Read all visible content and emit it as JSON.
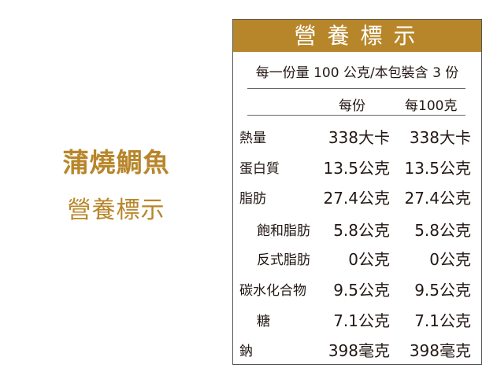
{
  "product": {
    "name": "蒲燒鯛魚",
    "subtitle": "營養標示"
  },
  "label": {
    "header": "營養標示",
    "serving": "每一份量 100 公克/本包裝含 3 份",
    "col_per_serving": "每份",
    "col_per_100g": "每100克",
    "rows": [
      {
        "name": "熱量",
        "per_serving": "338大卡",
        "per_100g": "338大卡",
        "indent": false
      },
      {
        "name": "蛋白質",
        "per_serving": "13.5公克",
        "per_100g": "13.5公克",
        "indent": false
      },
      {
        "name": "脂肪",
        "per_serving": "27.4公克",
        "per_100g": "27.4公克",
        "indent": false
      },
      {
        "name": "飽和脂肪",
        "per_serving": "5.8公克",
        "per_100g": "5.8公克",
        "indent": true
      },
      {
        "name": "反式脂肪",
        "per_serving": "0公克",
        "per_100g": "0公克",
        "indent": true
      },
      {
        "name": "碳水化合物",
        "per_serving": "9.5公克",
        "per_100g": "9.5公克",
        "indent": false
      },
      {
        "name": "糖",
        "per_serving": "7.1公克",
        "per_100g": "7.1公克",
        "indent": true
      },
      {
        "name": "鈉",
        "per_serving": "398毫克",
        "per_100g": "398毫克",
        "indent": false
      }
    ]
  },
  "colors": {
    "accent": "#B8862A"
  }
}
